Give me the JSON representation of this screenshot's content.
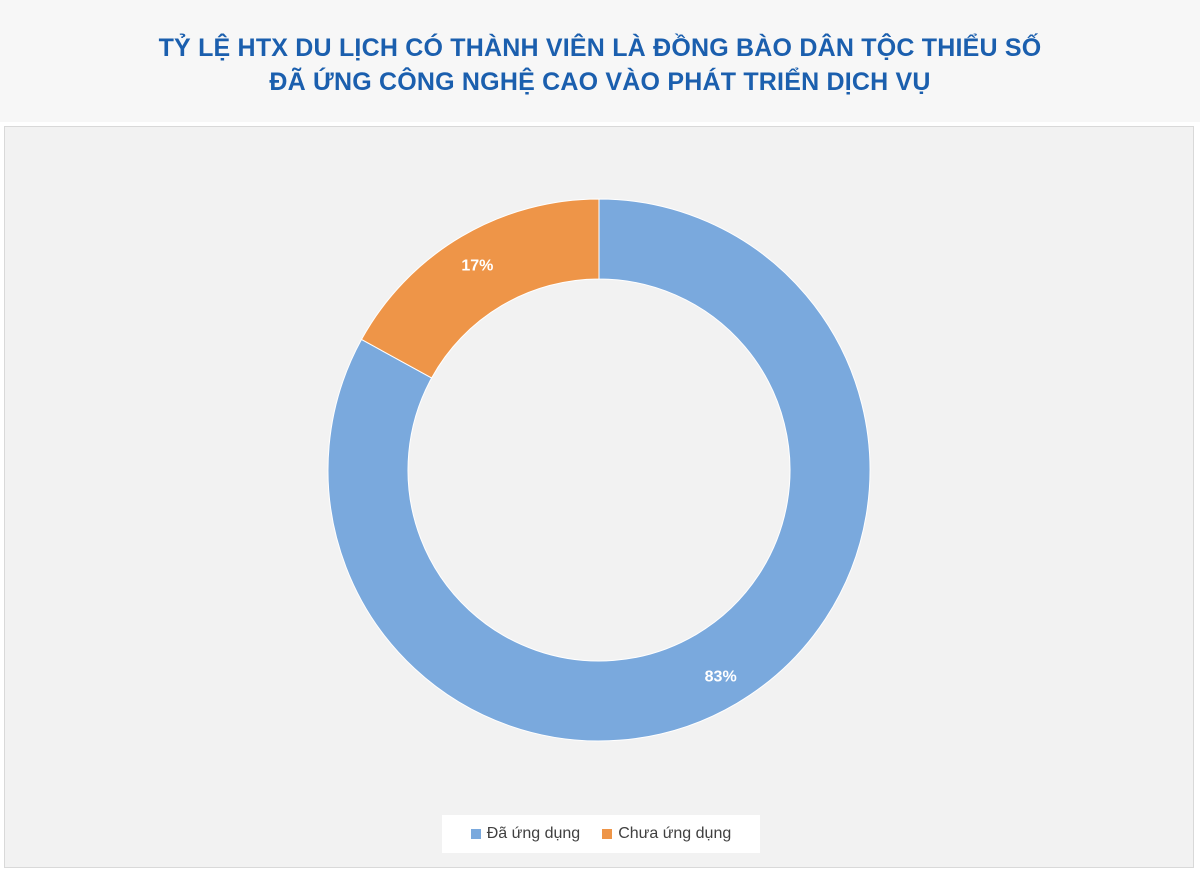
{
  "header": {
    "title_line_1": "TỶ LỆ HTX DU LỊCH CÓ THÀNH VIÊN LÀ ĐỒNG BÀO DÂN TỘC THIỂU SỐ",
    "title_line_2": "ĐÃ ỨNG CÔNG NGHỆ CAO VÀO PHÁT TRIỂN DỊCH VỤ"
  },
  "chart_data": {
    "type": "pie",
    "subtype": "doughnut",
    "title": "TỶ LỆ HTX DU LỊCH CÓ THÀNH VIÊN LÀ ĐỒNG BÀO DÂN TỘC THIỂU SỐ ĐÃ ỨNG CÔNG NGHỆ CAO VÀO PHÁT TRIỂN DỊCH VỤ",
    "categories": [
      "Đã ứng dụng",
      "Chưa ứng dụng"
    ],
    "values": [
      83,
      17
    ],
    "labels": [
      "83%",
      "17%"
    ],
    "colors": [
      "#7aa9dd",
      "#ee9548"
    ],
    "legend_position": "bottom"
  }
}
